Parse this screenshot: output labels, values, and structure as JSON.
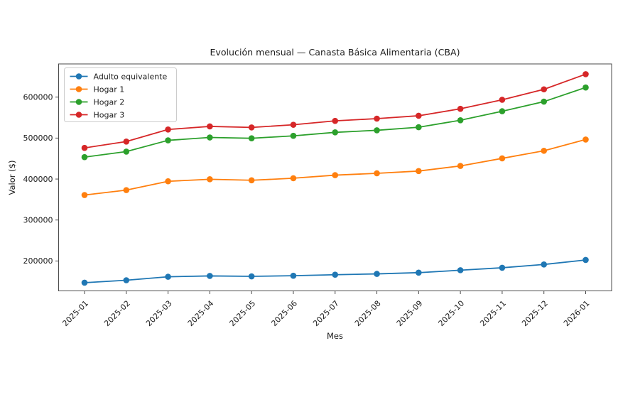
{
  "figure": {
    "background": "#ffffff"
  },
  "colors": {
    "axis": "#4a4a4a",
    "text": "#1c1c1c",
    "legend_border": "#cccccc",
    "legend_fill": "#ffffff"
  },
  "chart_data": {
    "type": "line",
    "title": "Evolución mensual — Canasta Básica Alimentaria (CBA)",
    "xlabel": "Mes",
    "ylabel": "Valor ($)",
    "categories": [
      "2025-01",
      "2025-02",
      "2025-03",
      "2025-04",
      "2025-05",
      "2025-06",
      "2025-07",
      "2025-08",
      "2025-09",
      "2025-10",
      "2025-11",
      "2025-12",
      "2026-01"
    ],
    "series": [
      {
        "name": "Adulto equivalente",
        "color": "#1f77b4",
        "values": [
          147000,
          153000,
          161500,
          163500,
          162500,
          164000,
          166500,
          168500,
          171500,
          177500,
          183500,
          191500,
          202500
        ]
      },
      {
        "name": "Hogar 1",
        "color": "#ff7f0e",
        "values": [
          361000,
          373000,
          394500,
          399500,
          397000,
          402000,
          409500,
          414000,
          419500,
          432000,
          450500,
          469000,
          496500
        ]
      },
      {
        "name": "Hogar 2",
        "color": "#2ca02c",
        "values": [
          453500,
          467000,
          494500,
          501500,
          499500,
          505500,
          514000,
          519000,
          526500,
          543500,
          565500,
          589000,
          623500
        ]
      },
      {
        "name": "Hogar 3",
        "color": "#d62728",
        "values": [
          476000,
          491500,
          521000,
          528500,
          526000,
          532500,
          542000,
          547500,
          554500,
          571500,
          593500,
          619000,
          656000
        ]
      }
    ],
    "yticks": [
      200000,
      300000,
      400000,
      500000,
      600000
    ],
    "ylim": [
      127000,
      681000
    ],
    "grid": false,
    "marker": "o",
    "legend_position": "upper left",
    "xtick_rotation": 45
  }
}
